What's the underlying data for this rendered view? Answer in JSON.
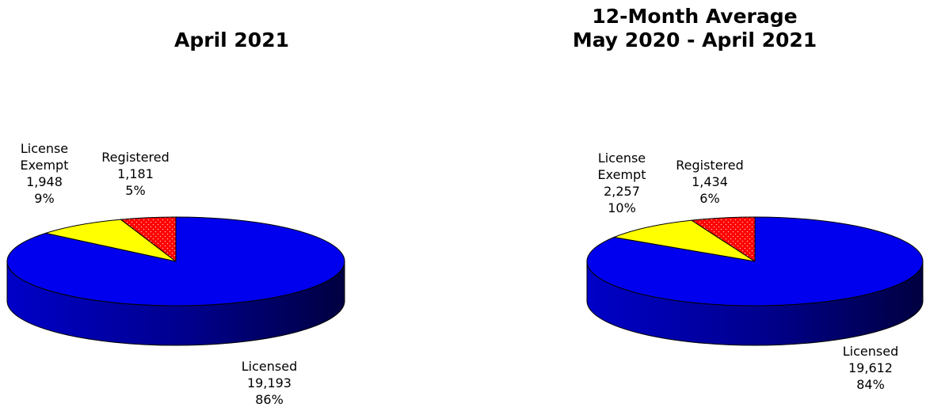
{
  "colors": {
    "licensed": "#0000EE",
    "license_exempt": "#FFFF00",
    "registered": "#FF0000",
    "outline": "#000000"
  },
  "chart_data": [
    {
      "type": "pie",
      "title": "April 2021",
      "slices": [
        {
          "name": "License Exempt",
          "value": 1948,
          "percent": "9%",
          "color": "#FFFF00"
        },
        {
          "name": "Registered",
          "value": 1181,
          "percent": "5%",
          "color": "#FF0000"
        },
        {
          "name": "Licensed",
          "value": 19193,
          "percent": "86%",
          "color": "#0000EE"
        }
      ],
      "labels": [
        {
          "lines": [
            "License",
            "Exempt",
            "1,948",
            "9%"
          ]
        },
        {
          "lines": [
            "Registered",
            "1,181",
            "5%"
          ]
        },
        {
          "lines": [
            "Licensed",
            "19,193",
            "86%"
          ]
        }
      ]
    },
    {
      "type": "pie",
      "title": "12-Month Average May 2020 - April 2021",
      "title_lines": [
        "12-Month Average",
        "May 2020 - April 2021"
      ],
      "slices": [
        {
          "name": "License Exempt",
          "value": 2257,
          "percent": "10%",
          "color": "#FFFF00"
        },
        {
          "name": "Registered",
          "value": 1434,
          "percent": "6%",
          "color": "#FF0000"
        },
        {
          "name": "Licensed",
          "value": 19612,
          "percent": "84%",
          "color": "#0000EE"
        }
      ],
      "labels": [
        {
          "lines": [
            "License",
            "Exempt",
            "2,257",
            "10%"
          ]
        },
        {
          "lines": [
            "Registered",
            "1,434",
            "6%"
          ]
        },
        {
          "lines": [
            "Licensed",
            "19,612",
            "84%"
          ]
        }
      ]
    }
  ]
}
